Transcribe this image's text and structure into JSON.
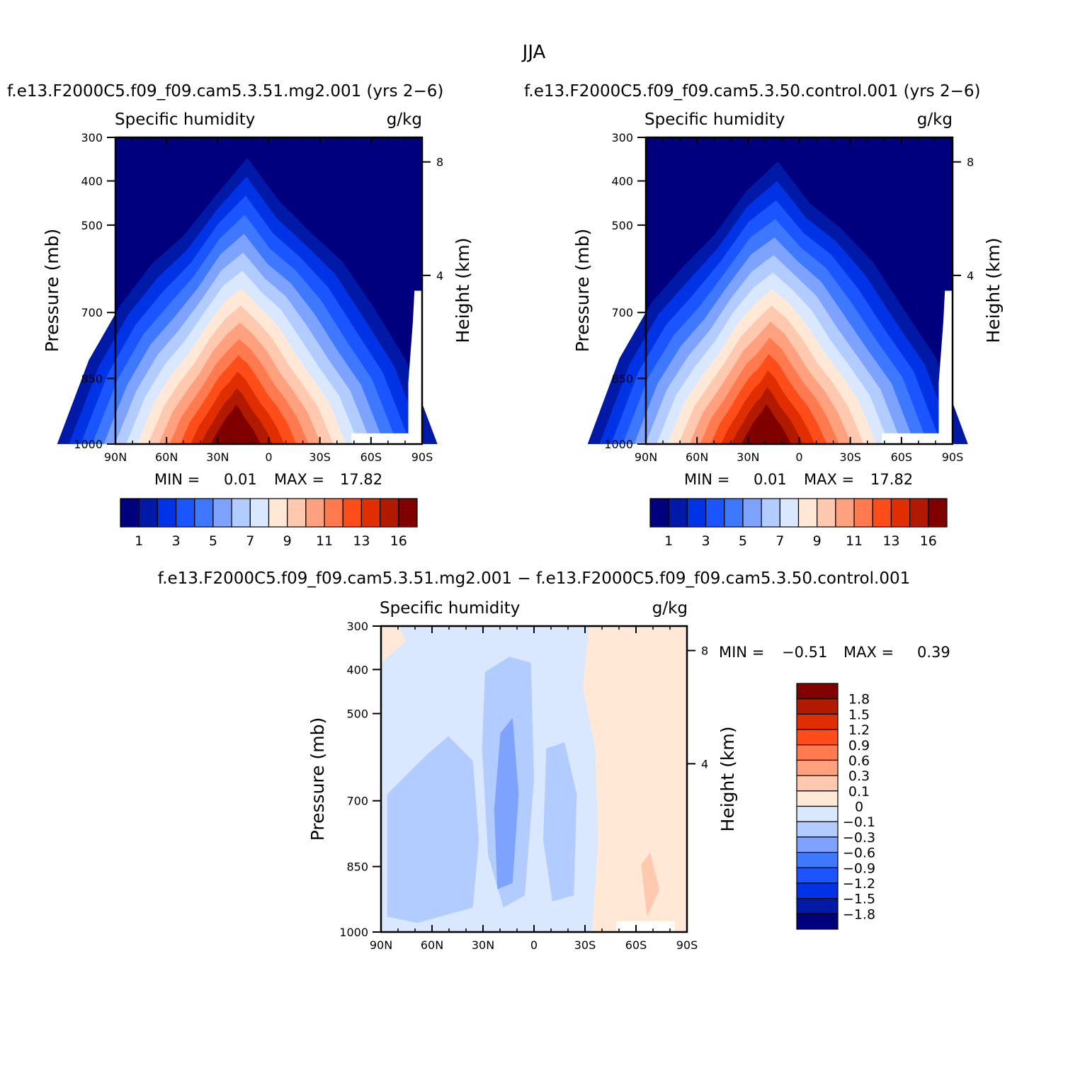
{
  "page_title": "JJA",
  "colors": {
    "abs_levels": [
      "#00007f",
      "#0019a6",
      "#0033e6",
      "#1a55ff",
      "#3d78ff",
      "#7ea3ff",
      "#b3ccff",
      "#d9e8ff",
      "#ffe9d6",
      "#ffc9b0",
      "#ffa07e",
      "#ff7a4f",
      "#ff4d1a",
      "#e02e00",
      "#b21a00",
      "#800000"
    ],
    "diff_levels": [
      "#00007f",
      "#0019a6",
      "#0033e6",
      "#1a55ff",
      "#3d78ff",
      "#7ea3ff",
      "#b3ccff",
      "#d9e8ff",
      "#ffe9d6",
      "#ffc9b0",
      "#ffa07e",
      "#ff7a4f",
      "#ff4d1a",
      "#e02e00",
      "#b21a00",
      "#800000"
    ]
  },
  "chart_data": [
    {
      "type": "heatmap",
      "title": "f.e13.F2000C5.f09_f09.cam5.3.51.mg2.001 (yrs 2−6)",
      "left_label": "Specific humidity",
      "right_label": "g/kg",
      "ylabel": "Pressure (mb)",
      "y2label": "Height (km)",
      "x_ticks": [
        "90N",
        "60N",
        "30N",
        "0",
        "30S",
        "60S",
        "90S"
      ],
      "y_ticks": [
        "300",
        "400",
        "500",
        "700",
        "850",
        "1000"
      ],
      "y2_ticks": [
        "8",
        "4"
      ],
      "min_label": "MIN =",
      "min_value": "0.01",
      "max_label": "MAX =",
      "max_value": "17.82",
      "colorbar_labels": [
        "1",
        "3",
        "5",
        "7",
        "9",
        "11",
        "13",
        "16"
      ]
    },
    {
      "type": "heatmap",
      "title": "f.e13.F2000C5.f09_f09.cam5.3.50.control.001 (yrs 2−6)",
      "left_label": "Specific humidity",
      "right_label": "g/kg",
      "ylabel": "Pressure (mb)",
      "y2label": "Height (km)",
      "x_ticks": [
        "90N",
        "60N",
        "30N",
        "0",
        "30S",
        "60S",
        "90S"
      ],
      "y_ticks": [
        "300",
        "400",
        "500",
        "700",
        "850",
        "1000"
      ],
      "y2_ticks": [
        "8",
        "4"
      ],
      "min_label": "MIN =",
      "min_value": "0.01",
      "max_label": "MAX =",
      "max_value": "17.82",
      "colorbar_labels": [
        "1",
        "3",
        "5",
        "7",
        "9",
        "11",
        "13",
        "16"
      ]
    },
    {
      "type": "heatmap",
      "title": "f.e13.F2000C5.f09_f09.cam5.3.51.mg2.001 − f.e13.F2000C5.f09_f09.cam5.3.50.control.001",
      "left_label": "Specific humidity",
      "right_label": "g/kg",
      "ylabel": "Pressure (mb)",
      "y2label": "Height (km)",
      "x_ticks": [
        "90N",
        "60N",
        "30N",
        "0",
        "30S",
        "60S",
        "90S"
      ],
      "y_ticks": [
        "300",
        "400",
        "500",
        "700",
        "850",
        "1000"
      ],
      "y2_ticks": [
        "8",
        "4"
      ],
      "min_label": "MIN =",
      "min_value": "−0.51",
      "max_label": "MAX =",
      "max_value": "0.39",
      "colorbar_labels": [
        "1.8",
        "1.5",
        "1.2",
        "0.9",
        "0.6",
        "0.3",
        "0.1",
        "0",
        "−0.1",
        "−0.3",
        "−0.6",
        "−0.9",
        "−1.2",
        "−1.5",
        "−1.8"
      ]
    }
  ]
}
